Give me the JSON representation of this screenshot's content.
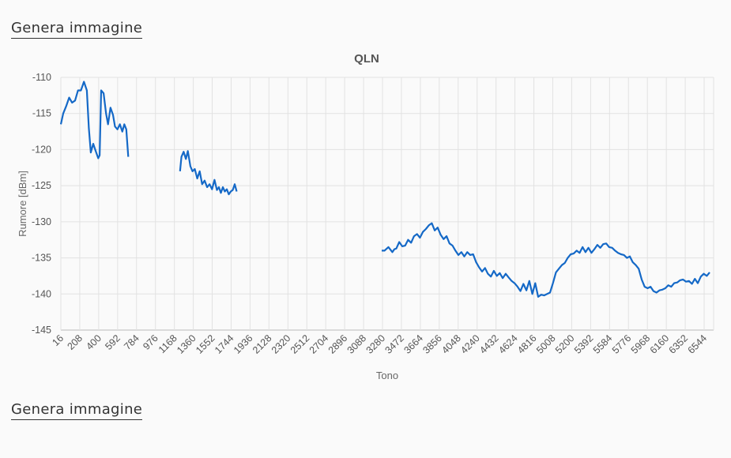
{
  "links": {
    "generate_top": "Genera immagine",
    "generate_bottom": "Genera immagine"
  },
  "chart_data": {
    "type": "line",
    "title": "QLN",
    "xlabel": "Tono",
    "ylabel": "Rumore [dBm]",
    "xlim": [
      16,
      6640
    ],
    "ylim": [
      -145,
      -110
    ],
    "x_ticks": [
      16,
      208,
      400,
      592,
      784,
      976,
      1168,
      1360,
      1552,
      1744,
      1936,
      2128,
      2320,
      2512,
      2704,
      2896,
      3088,
      3280,
      3472,
      3664,
      3856,
      4048,
      4240,
      4432,
      4624,
      4816,
      5008,
      5200,
      5392,
      5584,
      5776,
      5968,
      6160,
      6352,
      6544
    ],
    "y_ticks": [
      -110,
      -115,
      -120,
      -125,
      -130,
      -135,
      -140,
      -145
    ],
    "grid": true,
    "line_color": "#1569c7",
    "series": [
      {
        "segments": [
          [
            [
              16,
              -116.5
            ],
            [
              40,
              -115
            ],
            [
              70,
              -114
            ],
            [
              100,
              -112.8
            ],
            [
              130,
              -113.5
            ],
            [
              160,
              -113.2
            ],
            [
              190,
              -111.8
            ],
            [
              220,
              -111.8
            ],
            [
              250,
              -110.6
            ],
            [
              280,
              -111.8
            ],
            [
              300,
              -117
            ],
            [
              320,
              -120.4
            ],
            [
              345,
              -119.2
            ],
            [
              370,
              -120.2
            ],
            [
              395,
              -121.2
            ],
            [
              410,
              -120.8
            ],
            [
              425,
              -111.8
            ],
            [
              450,
              -112.2
            ],
            [
              475,
              -115
            ],
            [
              495,
              -116.5
            ],
            [
              520,
              -114.2
            ],
            [
              545,
              -115.2
            ],
            [
              565,
              -116.8
            ],
            [
              590,
              -117.2
            ],
            [
              615,
              -116.5
            ],
            [
              640,
              -117.5
            ],
            [
              660,
              -116.5
            ],
            [
              680,
              -117.2
            ],
            [
              700,
              -121
            ]
          ],
          [
            [
              1225,
              -123
            ],
            [
              1240,
              -121
            ],
            [
              1262,
              -120.3
            ],
            [
              1285,
              -121.3
            ],
            [
              1305,
              -120.2
            ],
            [
              1330,
              -122.3
            ],
            [
              1352,
              -123
            ],
            [
              1375,
              -122.7
            ],
            [
              1400,
              -124
            ],
            [
              1425,
              -123
            ],
            [
              1450,
              -124.8
            ],
            [
              1475,
              -124.3
            ],
            [
              1500,
              -125.2
            ],
            [
              1525,
              -124.8
            ],
            [
              1550,
              -125.5
            ],
            [
              1575,
              -124.2
            ],
            [
              1600,
              -125.6
            ],
            [
              1620,
              -125.2
            ],
            [
              1640,
              -126
            ],
            [
              1660,
              -125.2
            ],
            [
              1680,
              -125.8
            ],
            [
              1700,
              -125.5
            ],
            [
              1720,
              -126.2
            ],
            [
              1740,
              -125.8
            ],
            [
              1760,
              -125.6
            ],
            [
              1780,
              -124.8
            ],
            [
              1800,
              -125.8
            ]
          ],
          [
            [
              3272,
              -134
            ],
            [
              3300,
              -134
            ],
            [
              3340,
              -133.5
            ],
            [
              3380,
              -134.2
            ],
            [
              3400,
              -133.8
            ],
            [
              3420,
              -133.7
            ],
            [
              3450,
              -132.8
            ],
            [
              3480,
              -133.4
            ],
            [
              3510,
              -133.3
            ],
            [
              3540,
              -132.5
            ],
            [
              3570,
              -132.9
            ],
            [
              3600,
              -132
            ],
            [
              3630,
              -131.7
            ],
            [
              3660,
              -132.2
            ],
            [
              3690,
              -131.4
            ],
            [
              3720,
              -131
            ],
            [
              3750,
              -130.5
            ],
            [
              3780,
              -130.2
            ],
            [
              3810,
              -131.2
            ],
            [
              3840,
              -130.8
            ],
            [
              3870,
              -131.8
            ],
            [
              3900,
              -132.4
            ],
            [
              3930,
              -132
            ],
            [
              3960,
              -133
            ],
            [
              3990,
              -133.3
            ],
            [
              4020,
              -134
            ],
            [
              4050,
              -134.6
            ],
            [
              4080,
              -134.2
            ],
            [
              4110,
              -134.8
            ],
            [
              4140,
              -134.2
            ],
            [
              4170,
              -134.6
            ],
            [
              4200,
              -134.5
            ],
            [
              4230,
              -135.6
            ],
            [
              4260,
              -136.3
            ],
            [
              4290,
              -136.9
            ],
            [
              4320,
              -136.4
            ],
            [
              4350,
              -137.2
            ],
            [
              4380,
              -137.6
            ],
            [
              4410,
              -136.8
            ],
            [
              4440,
              -137.5
            ],
            [
              4470,
              -137.1
            ],
            [
              4500,
              -137.8
            ],
            [
              4530,
              -137.2
            ],
            [
              4560,
              -137.7
            ],
            [
              4590,
              -138.2
            ],
            [
              4620,
              -138.5
            ],
            [
              4650,
              -139
            ],
            [
              4680,
              -139.6
            ],
            [
              4710,
              -138.6
            ],
            [
              4740,
              -139.5
            ],
            [
              4770,
              -138.2
            ],
            [
              4800,
              -140
            ],
            [
              4830,
              -138.5
            ],
            [
              4860,
              -140.4
            ],
            [
              4890,
              -140.1
            ],
            [
              4920,
              -140.2
            ],
            [
              4950,
              -140
            ],
            [
              4980,
              -139.8
            ],
            [
              5010,
              -138.5
            ],
            [
              5040,
              -137
            ],
            [
              5070,
              -136.5
            ],
            [
              5100,
              -136
            ],
            [
              5130,
              -135.7
            ],
            [
              5160,
              -135
            ],
            [
              5190,
              -134.5
            ],
            [
              5220,
              -134.4
            ],
            [
              5250,
              -134
            ],
            [
              5280,
              -134.3
            ],
            [
              5310,
              -133.5
            ],
            [
              5340,
              -134.2
            ],
            [
              5370,
              -133.6
            ],
            [
              5400,
              -134.3
            ],
            [
              5430,
              -133.8
            ],
            [
              5460,
              -133.2
            ],
            [
              5490,
              -133.6
            ],
            [
              5520,
              -133.1
            ],
            [
              5550,
              -133
            ],
            [
              5580,
              -133.5
            ],
            [
              5610,
              -133.6
            ],
            [
              5640,
              -134
            ],
            [
              5670,
              -134.3
            ],
            [
              5700,
              -134.5
            ],
            [
              5730,
              -134.6
            ],
            [
              5760,
              -135
            ],
            [
              5790,
              -134.8
            ],
            [
              5820,
              -135.6
            ],
            [
              5850,
              -136
            ],
            [
              5880,
              -136.5
            ],
            [
              5910,
              -138
            ],
            [
              5940,
              -139
            ],
            [
              5970,
              -139.2
            ],
            [
              6000,
              -139
            ],
            [
              6030,
              -139.6
            ],
            [
              6060,
              -139.8
            ],
            [
              6090,
              -139.5
            ],
            [
              6120,
              -139.4
            ],
            [
              6150,
              -139.2
            ],
            [
              6180,
              -138.8
            ],
            [
              6210,
              -139
            ],
            [
              6240,
              -138.5
            ],
            [
              6270,
              -138.4
            ],
            [
              6300,
              -138.1
            ],
            [
              6330,
              -138
            ],
            [
              6360,
              -138.3
            ],
            [
              6390,
              -138.2
            ],
            [
              6420,
              -138.6
            ],
            [
              6450,
              -137.9
            ],
            [
              6480,
              -138.5
            ],
            [
              6510,
              -137.6
            ],
            [
              6540,
              -137.2
            ],
            [
              6570,
              -137.5
            ],
            [
              6600,
              -137
            ]
          ]
        ]
      }
    ]
  }
}
